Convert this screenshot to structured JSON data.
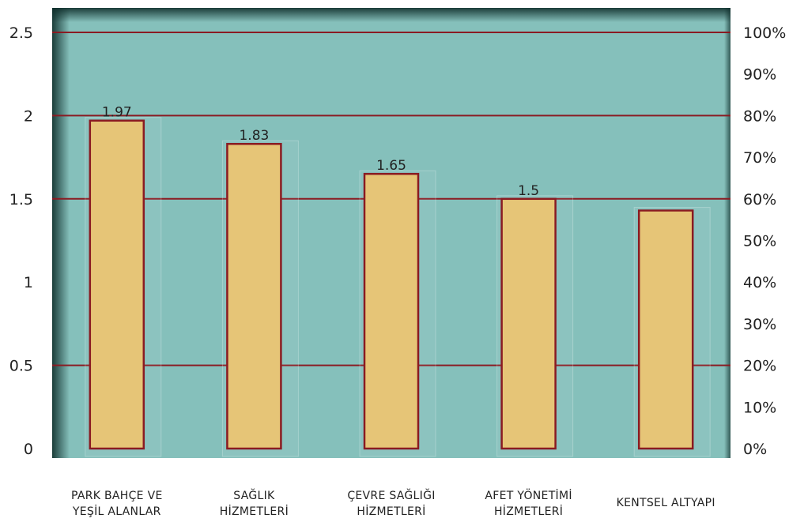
{
  "chart_data": {
    "type": "bar",
    "categories": [
      [
        "PARK BAHÇE VE",
        "YEŞİL ALANLAR"
      ],
      [
        "SAĞLIK",
        "HİZMETLERİ"
      ],
      [
        "ÇEVRE SAĞLIĞI",
        "HİZMETLERİ"
      ],
      [
        "AFET YÖNETİMİ",
        "HİZMETLERİ"
      ],
      [
        "KENTSEL ALTYAPI"
      ]
    ],
    "values": [
      1.97,
      1.83,
      1.65,
      1.5,
      1.43
    ],
    "data_labels": [
      "1.97",
      "1.83",
      "1.65",
      "1.5",
      ""
    ],
    "ylim": [
      0,
      2.5
    ],
    "yticks": [
      "0",
      "0.5",
      "1",
      "1.5",
      "2",
      "2.5"
    ],
    "y2lim": [
      0,
      100
    ],
    "y2ticks": [
      "0%",
      "10%",
      "20%",
      "30%",
      "40%",
      "50%",
      "60%",
      "70%",
      "80%",
      "90%",
      "100%"
    ],
    "gridlines": [
      0.5,
      1.5,
      2,
      2.5
    ],
    "colors": {
      "plot_bg": "#85c0bb",
      "plot_border": "#1f4a46",
      "bar_fill": "#e6c577",
      "bar_stroke": "#8a1b22",
      "grid": "#8a1b22"
    }
  }
}
